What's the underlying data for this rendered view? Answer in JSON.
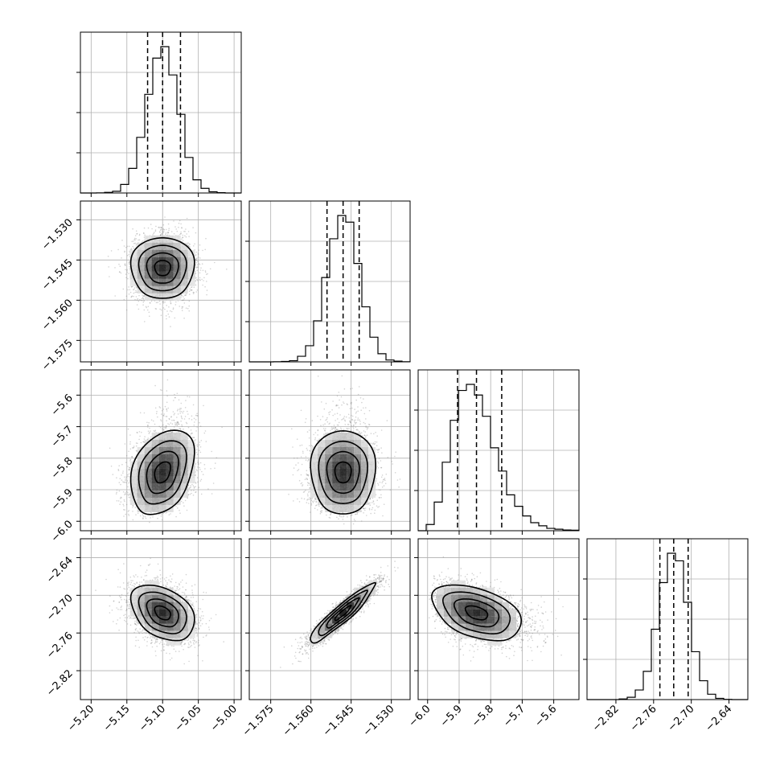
{
  "chart_data": {
    "type": "corner",
    "grid": true,
    "parameters": [
      {
        "range": [
          -5.215,
          -4.99
        ],
        "mean": -5.1,
        "sd": 0.022,
        "skew": 0,
        "quantiles": [
          -5.121,
          -5.1,
          -5.075
        ],
        "ticks": [
          -5.2,
          -5.15,
          -5.1,
          -5.05,
          -5.0
        ],
        "tick_labels": [
          "−5.20",
          "−5.15",
          "−5.10",
          "−5.05",
          "−5.00"
        ]
      },
      {
        "range": [
          -1.583,
          -1.523
        ],
        "mean": -1.548,
        "sd": 0.006,
        "skew": 0,
        "quantiles": [
          -1.554,
          -1.548,
          -1.542
        ],
        "ticks": [
          -1.575,
          -1.56,
          -1.545,
          -1.53
        ],
        "tick_labels": [
          "−1.575",
          "−1.560",
          "−1.545",
          "−1.530"
        ]
      },
      {
        "range": [
          -6.03,
          -5.52
        ],
        "mean": -5.845,
        "sd": 0.07,
        "skew": 0.45,
        "quantiles": [
          -5.905,
          -5.845,
          -5.765
        ],
        "ticks": [
          -6.0,
          -5.9,
          -5.8,
          -5.7,
          -5.6
        ],
        "tick_labels": [
          "−6.0",
          "−5.9",
          "−5.8",
          "−5.7",
          "−5.6"
        ]
      },
      {
        "range": [
          -2.866,
          -2.61
        ],
        "mean": -2.728,
        "sd": 0.023,
        "skew": 0,
        "quantiles": [
          -2.75,
          -2.728,
          -2.705
        ],
        "ticks": [
          -2.82,
          -2.76,
          -2.7,
          -2.64
        ],
        "tick_labels": [
          "−2.82",
          "−2.76",
          "−2.70",
          "−2.64"
        ]
      }
    ],
    "correlations": [
      {
        "pair": [
          1,
          0
        ],
        "rho": 0.0
      },
      {
        "pair": [
          2,
          0
        ],
        "rho": 0.3
      },
      {
        "pair": [
          2,
          1
        ],
        "rho": 0.0
      },
      {
        "pair": [
          3,
          0
        ],
        "rho": -0.35
      },
      {
        "pair": [
          3,
          1
        ],
        "rho": 0.92
      },
      {
        "pair": [
          3,
          2
        ],
        "rho": -0.4
      }
    ],
    "hist_bins": 20,
    "contour_levels": [
      0.5,
      1.0,
      1.5,
      2.0
    ],
    "colors": {
      "scatter": "#808080",
      "frame": "#000000",
      "grid": "#b0b0b0"
    }
  }
}
